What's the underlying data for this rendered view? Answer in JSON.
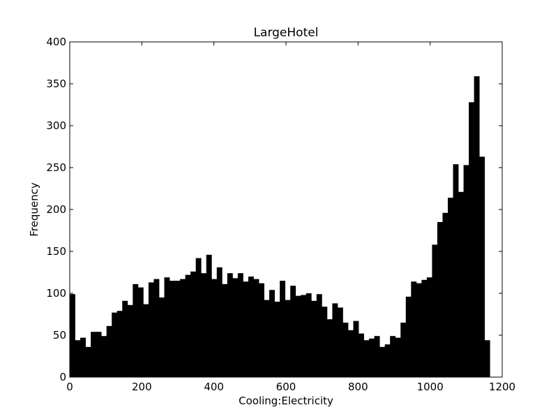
{
  "chart_data": {
    "type": "bar",
    "title": "LargeHotel",
    "xlabel": "Cooling:Electricity",
    "ylabel": "Frequency",
    "xlim": [
      0,
      1200
    ],
    "ylim": [
      0,
      400
    ],
    "xticks": [
      0,
      200,
      400,
      600,
      800,
      1000,
      1200
    ],
    "yticks": [
      0,
      50,
      100,
      150,
      200,
      250,
      300,
      350,
      400
    ],
    "xtick_labels": [
      "0",
      "200",
      "400",
      "600",
      "800",
      "1000",
      "1200"
    ],
    "ytick_labels": [
      "0",
      "50",
      "100",
      "150",
      "200",
      "250",
      "300",
      "350",
      "400"
    ],
    "bin_width": 14.57,
    "bin_start": 0,
    "values": [
      99,
      44,
      47,
      36,
      54,
      54,
      49,
      61,
      77,
      79,
      91,
      86,
      111,
      107,
      87,
      113,
      117,
      95,
      119,
      115,
      115,
      117,
      122,
      126,
      142,
      124,
      146,
      117,
      131,
      111,
      124,
      118,
      124,
      114,
      120,
      117,
      112,
      92,
      104,
      90,
      115,
      92,
      109,
      97,
      98,
      100,
      91,
      99,
      84,
      69,
      88,
      83,
      65,
      56,
      67,
      52,
      44,
      46,
      49,
      36,
      39,
      49,
      47,
      65,
      96,
      114,
      112,
      116,
      119,
      158,
      185,
      196,
      214,
      254,
      221,
      253,
      328,
      359,
      263,
      44
    ],
    "grid": false,
    "bar_color": "#000000"
  }
}
